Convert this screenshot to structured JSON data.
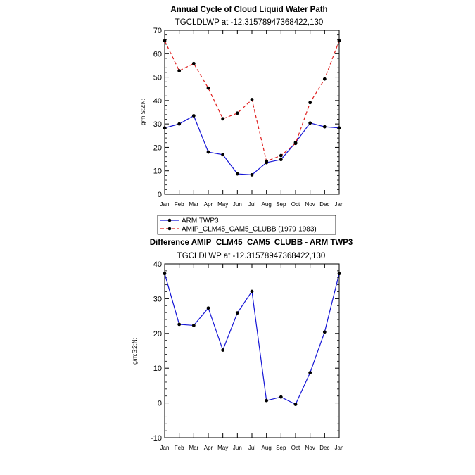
{
  "chart_data": [
    {
      "type": "line",
      "title": "Annual Cycle of Cloud Liquid Water Path",
      "subtitle": "TGCLDLWP at -12.31578947368422,130",
      "ylabel": "g/m:S:2:N:",
      "xlabel": "",
      "ylim": [
        0,
        70
      ],
      "yticks": [
        0,
        10,
        20,
        30,
        40,
        50,
        60,
        70
      ],
      "categories": [
        "Jan",
        "Feb",
        "Mar",
        "Apr",
        "May",
        "Jun",
        "Jul",
        "Aug",
        "Sep",
        "Oct",
        "Nov",
        "Dec",
        "Jan"
      ],
      "series": [
        {
          "name": "ARM TWP3",
          "color": "#1515d6",
          "dash": "solid",
          "values": [
            28.3,
            30.0,
            33.5,
            18.0,
            16.9,
            8.7,
            8.3,
            13.5,
            14.8,
            22.1,
            30.4,
            28.8,
            28.3
          ]
        },
        {
          "name": "AMIP_CLM45_CAM5_CLUBB (1979-1983)",
          "color": "#e01f1f",
          "dash": "dashed",
          "values": [
            65.5,
            52.7,
            55.8,
            45.3,
            32.2,
            34.6,
            40.4,
            14.1,
            16.5,
            21.7,
            39.1,
            49.2,
            65.5
          ]
        }
      ]
    },
    {
      "type": "line",
      "title": "Difference AMIP_CLM45_CAM5_CLUBB - ARM TWP3",
      "subtitle": "TGCLDLWP at -12.31578947368422,130",
      "ylabel": "g/m:S:2:N:",
      "xlabel": "",
      "ylim": [
        -10,
        40
      ],
      "yticks": [
        -10,
        0,
        10,
        20,
        30,
        40
      ],
      "categories": [
        "Jan",
        "Feb",
        "Mar",
        "Apr",
        "May",
        "Jun",
        "Jul",
        "Aug",
        "Sep",
        "Oct",
        "Nov",
        "Dec",
        "Jan"
      ],
      "series": [
        {
          "name": "Difference",
          "color": "#1515d6",
          "dash": "solid",
          "values": [
            37.2,
            22.6,
            22.3,
            27.3,
            15.2,
            25.9,
            32.1,
            0.7,
            1.7,
            -0.4,
            8.7,
            20.4,
            37.2
          ]
        }
      ]
    }
  ]
}
